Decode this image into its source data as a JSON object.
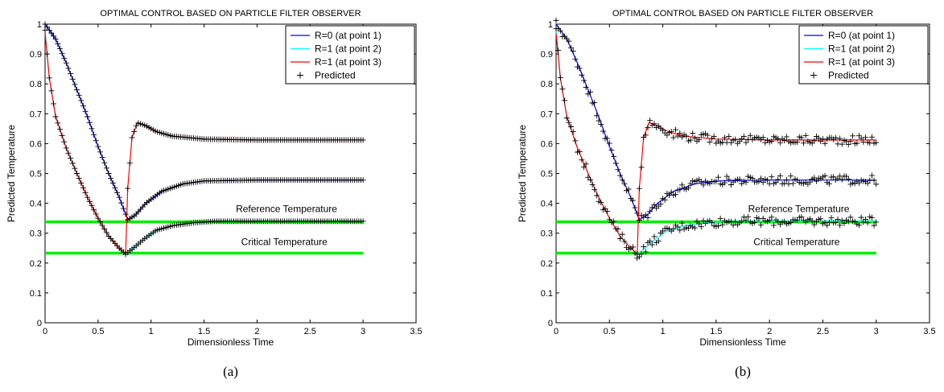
{
  "chart_data": [
    {
      "type": "line",
      "title": "OPTIMAL CONTROL BASED ON PARTICLE FILTER OBSERVER",
      "xlabel": "Dimensionless Time",
      "ylabel": "Predicted Temperature",
      "caption": "(a)",
      "xlim": [
        0,
        3.5
      ],
      "ylim": [
        0,
        1
      ],
      "x_ticks": [
        "0",
        "0.5",
        "1",
        "1.5",
        "2",
        "2.5",
        "3",
        "3.5"
      ],
      "y_ticks": [
        "0",
        "0.1",
        "0.2",
        "0.3",
        "0.4",
        "0.5",
        "0.6",
        "0.7",
        "0.8",
        "0.9",
        "1"
      ],
      "grid": false,
      "legend_position": "top-right",
      "noisy_markers": false,
      "legend": [
        "R=0 (at point 1)",
        "R=1 (at point 2)",
        "R=1 (at point 3)",
        "Predicted"
      ],
      "annotations": [
        {
          "text": "Reference Temperature",
          "x": 1.8,
          "y": 0.37
        },
        {
          "text": "Critical Temperature",
          "x": 1.85,
          "y": 0.26
        }
      ],
      "series": [
        {
          "name": "R=0 (at point 1)",
          "color": "#0000ff",
          "x": [
            0,
            0.1,
            0.2,
            0.3,
            0.4,
            0.5,
            0.6,
            0.7,
            0.78,
            0.85,
            0.95,
            1.1,
            1.3,
            1.5,
            2.0,
            2.5,
            3.0
          ],
          "y": [
            1.0,
            0.95,
            0.87,
            0.78,
            0.69,
            0.59,
            0.5,
            0.42,
            0.345,
            0.36,
            0.4,
            0.44,
            0.465,
            0.475,
            0.478,
            0.478,
            0.478
          ]
        },
        {
          "name": "R=1 (at point 2)",
          "color": "#00ffff",
          "x": [
            0,
            0.04,
            0.1,
            0.2,
            0.3,
            0.4,
            0.5,
            0.6,
            0.7,
            0.76,
            0.85,
            0.95,
            1.05,
            1.2,
            1.4,
            1.6,
            2.0,
            2.5,
            3.0
          ],
          "y": [
            0.98,
            0.82,
            0.69,
            0.585,
            0.5,
            0.42,
            0.35,
            0.29,
            0.25,
            0.23,
            0.255,
            0.285,
            0.31,
            0.325,
            0.335,
            0.34,
            0.34,
            0.34,
            0.34
          ]
        },
        {
          "name": "R=1 (at point 3)",
          "color": "#ff0000",
          "x": [
            0,
            0.04,
            0.1,
            0.2,
            0.3,
            0.4,
            0.5,
            0.6,
            0.7,
            0.76,
            0.78,
            0.82,
            0.87,
            0.95,
            1.05,
            1.2,
            1.5,
            2.0,
            2.5,
            3.0
          ],
          "y": [
            0.97,
            0.82,
            0.69,
            0.585,
            0.5,
            0.42,
            0.35,
            0.29,
            0.25,
            0.23,
            0.45,
            0.62,
            0.67,
            0.66,
            0.64,
            0.625,
            0.615,
            0.612,
            0.612,
            0.612
          ]
        }
      ],
      "reference_lines": [
        {
          "name": "Reference Temperature",
          "y": 0.338,
          "x": [
            0,
            3
          ],
          "color": "#00ee00"
        },
        {
          "name": "Critical Temperature",
          "y": 0.233,
          "x": [
            0,
            3
          ],
          "color": "#00ee00"
        }
      ]
    },
    {
      "type": "line",
      "title": "OPTIMAL CONTROL BASED ON PARTICLE FILTER OBSERVER",
      "xlabel": "Dimensionless Time",
      "ylabel": "Predicted Temperature",
      "caption": "(b)",
      "xlim": [
        0,
        3.5
      ],
      "ylim": [
        0,
        1
      ],
      "x_ticks": [
        "0",
        "0.5",
        "1",
        "1.5",
        "2",
        "2.5",
        "3",
        "3.5"
      ],
      "y_ticks": [
        "0",
        "0.1",
        "0.2",
        "0.3",
        "0.4",
        "0.5",
        "0.6",
        "0.7",
        "0.8",
        "0.9",
        "1"
      ],
      "grid": false,
      "legend_position": "top-right",
      "noisy_markers": true,
      "legend": [
        "R=0 (at point 1)",
        "R=1 (at point 2)",
        "R=1 (at point 3)",
        "Predicted"
      ],
      "annotations": [
        {
          "text": "Reference Temperature",
          "x": 1.8,
          "y": 0.37
        },
        {
          "text": "Critical Temperature",
          "x": 1.85,
          "y": 0.26
        }
      ],
      "series": [
        {
          "name": "R=0 (at point 1)",
          "color": "#0000ff",
          "x": [
            0,
            0.1,
            0.2,
            0.3,
            0.4,
            0.5,
            0.6,
            0.7,
            0.78,
            0.85,
            0.95,
            1.1,
            1.3,
            1.5,
            2.0,
            2.5,
            3.0
          ],
          "y": [
            1.0,
            0.95,
            0.87,
            0.78,
            0.69,
            0.59,
            0.5,
            0.42,
            0.345,
            0.36,
            0.4,
            0.44,
            0.465,
            0.475,
            0.478,
            0.478,
            0.478
          ]
        },
        {
          "name": "R=1 (at point 2)",
          "color": "#00ffff",
          "x": [
            0,
            0.04,
            0.1,
            0.2,
            0.3,
            0.4,
            0.5,
            0.6,
            0.7,
            0.76,
            0.85,
            0.95,
            1.05,
            1.2,
            1.4,
            1.6,
            2.0,
            2.5,
            3.0
          ],
          "y": [
            0.98,
            0.82,
            0.69,
            0.585,
            0.5,
            0.42,
            0.35,
            0.29,
            0.25,
            0.23,
            0.255,
            0.285,
            0.31,
            0.325,
            0.335,
            0.34,
            0.34,
            0.34,
            0.34
          ]
        },
        {
          "name": "R=1 (at point 3)",
          "color": "#ff0000",
          "x": [
            0,
            0.04,
            0.1,
            0.2,
            0.3,
            0.4,
            0.5,
            0.6,
            0.7,
            0.76,
            0.78,
            0.82,
            0.87,
            0.95,
            1.05,
            1.2,
            1.5,
            2.0,
            2.5,
            3.0
          ],
          "y": [
            0.97,
            0.82,
            0.69,
            0.585,
            0.5,
            0.42,
            0.35,
            0.29,
            0.25,
            0.23,
            0.45,
            0.62,
            0.67,
            0.66,
            0.64,
            0.625,
            0.615,
            0.612,
            0.612,
            0.612
          ]
        }
      ],
      "reference_lines": [
        {
          "name": "Reference Temperature",
          "y": 0.338,
          "x": [
            0,
            3
          ],
          "color": "#00ee00"
        },
        {
          "name": "Critical Temperature",
          "y": 0.233,
          "x": [
            0,
            3
          ],
          "color": "#00ee00"
        }
      ]
    }
  ]
}
